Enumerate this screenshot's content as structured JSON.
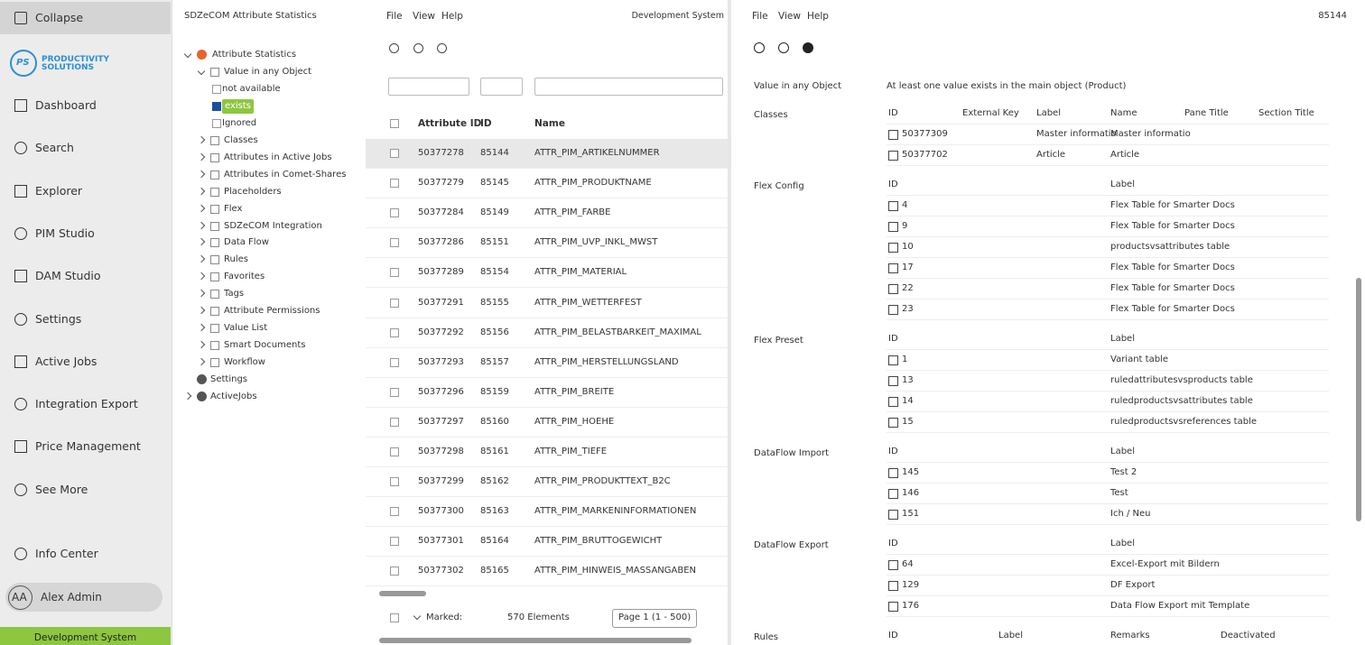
{
  "sidebar": {
    "collapse": "Collapse",
    "logo": {
      "initials": "PS",
      "line1": "PRODUCTIVITY",
      "line2": "SOLUTIONS"
    },
    "nav": [
      "Dashboard",
      "Search",
      "Explorer",
      "PIM Studio",
      "DAM Studio",
      "Settings",
      "Active Jobs",
      "Integration Export",
      "Price Management",
      "See More"
    ],
    "info_center": "Info Center",
    "user": {
      "initials": "AA",
      "name": "Alex Admin"
    },
    "environment": "Development System"
  },
  "tree_panel": {
    "title": "SDZeCOM Attribute Statistics",
    "nodes": [
      {
        "label": "Attribute Statistics",
        "expanded": true,
        "children": [
          {
            "label": "Value in any Object",
            "expanded": true,
            "children": [
              {
                "label": "not available"
              },
              {
                "label": "exists",
                "checked": true
              },
              {
                "label": "Ignored"
              }
            ]
          },
          {
            "label": "Classes",
            "collapsed": true
          },
          {
            "label": "Attributes in Active Jobs",
            "collapsed": true
          },
          {
            "label": "Attributes in Comet-Shares",
            "collapsed": true
          },
          {
            "label": "Placeholders",
            "collapsed": true
          },
          {
            "label": "Flex",
            "collapsed": true
          },
          {
            "label": "SDZeCOM Integration",
            "collapsed": true
          },
          {
            "label": "Data Flow",
            "collapsed": true
          },
          {
            "label": "Rules",
            "collapsed": true
          },
          {
            "label": "Favorites",
            "collapsed": true
          },
          {
            "label": "Tags",
            "collapsed": true
          },
          {
            "label": "Attribute Permissions",
            "collapsed": true
          },
          {
            "label": "Value List",
            "collapsed": true
          },
          {
            "label": "Smart Documents",
            "collapsed": true
          },
          {
            "label": "Workflow",
            "collapsed": true
          }
        ]
      },
      {
        "label": "Settings"
      },
      {
        "label": "ActiveJobs",
        "collapsed": true
      }
    ]
  },
  "list_panel": {
    "menu": [
      "File",
      "View",
      "Help"
    ],
    "system": "Development System",
    "columns": [
      "Attribute ID",
      "ID",
      "Name"
    ],
    "rows": [
      [
        "50377278",
        "85144",
        "ATTR_PIM_ARTIKELNUMMER"
      ],
      [
        "50377279",
        "85145",
        "ATTR_PIM_PRODUKTNAME"
      ],
      [
        "50377284",
        "85149",
        "ATTR_PIM_FARBE"
      ],
      [
        "50377286",
        "85151",
        "ATTR_PIM_UVP_INKL_MWST"
      ],
      [
        "50377289",
        "85154",
        "ATTR_PIM_MATERIAL"
      ],
      [
        "50377291",
        "85155",
        "ATTR_PIM_WETTERFEST"
      ],
      [
        "50377292",
        "85156",
        "ATTR_PIM_BELASTBARKEIT_MAXIMAL"
      ],
      [
        "50377293",
        "85157",
        "ATTR_PIM_HERSTELLUNGSLAND"
      ],
      [
        "50377296",
        "85159",
        "ATTR_PIM_BREITE"
      ],
      [
        "50377297",
        "85160",
        "ATTR_PIM_HOEHE"
      ],
      [
        "50377298",
        "85161",
        "ATTR_PIM_TIEFE"
      ],
      [
        "50377299",
        "85162",
        "ATTR_PIM_PRODUKTTEXT_B2C"
      ],
      [
        "50377300",
        "85163",
        "ATTR_PIM_MARKENINFORMATIONEN"
      ],
      [
        "50377301",
        "85164",
        "ATTR_PIM_BRUTTOGEWICHT"
      ],
      [
        "50377302",
        "85165",
        "ATTR_PIM_HINWEIS_MASSANGABEN"
      ]
    ],
    "marked": "Marked:",
    "count": "570 Elements",
    "page": "Page 1 (1 - 500)"
  },
  "detail_panel": {
    "menu": [
      "File",
      "View",
      "Help"
    ],
    "object_id": "85144",
    "sections": [
      {
        "title": "Value in any Object",
        "text": "At least one value exists in the main object (Product)"
      },
      {
        "title": "Classes",
        "columns": [
          "ID",
          "External Key",
          "Label",
          "Name",
          "Pane Title",
          "Section Title"
        ],
        "rows": [
          [
            "50377309",
            null,
            "Master informatio",
            "Master informatio"
          ],
          [
            "50377702",
            null,
            "Article",
            "Article"
          ]
        ]
      },
      {
        "title": "Flex Config",
        "columns": [
          "ID",
          "Label"
        ],
        "rows": [
          [
            "4",
            "Flex Table for Smarter Docs"
          ],
          [
            "9",
            "Flex Table for Smarter Docs"
          ],
          [
            "10",
            "productsvsattributes table"
          ],
          [
            "17",
            "Flex Table for Smarter Docs"
          ],
          [
            "22",
            "Flex Table for Smarter Docs"
          ],
          [
            "23",
            "Flex Table for Smarter Docs"
          ]
        ]
      },
      {
        "title": "Flex Preset",
        "columns": [
          "ID",
          "Label"
        ],
        "rows": [
          [
            "1",
            "Variant table"
          ],
          [
            "13",
            "ruledattributesvsproducts table"
          ],
          [
            "14",
            "ruledproductsvsattributes table"
          ],
          [
            "15",
            "ruledproductsvsreferences table"
          ]
        ]
      },
      {
        "title": "DataFlow Import",
        "columns": [
          "ID",
          "Label"
        ],
        "rows": [
          [
            "145",
            "Test 2"
          ],
          [
            "146",
            "Test"
          ],
          [
            "151",
            "Ich / Neu"
          ]
        ]
      },
      {
        "title": "DataFlow Export",
        "columns": [
          "ID",
          "Label"
        ],
        "rows": [
          [
            "64",
            "Excel-Export mit Bildern"
          ],
          [
            "129",
            "DF Export"
          ],
          [
            "176",
            "Data Flow Export mit Template"
          ]
        ]
      },
      {
        "title": "Rules",
        "columns": [
          "ID",
          "Label",
          "Remarks",
          "Deactivated"
        ]
      }
    ]
  }
}
